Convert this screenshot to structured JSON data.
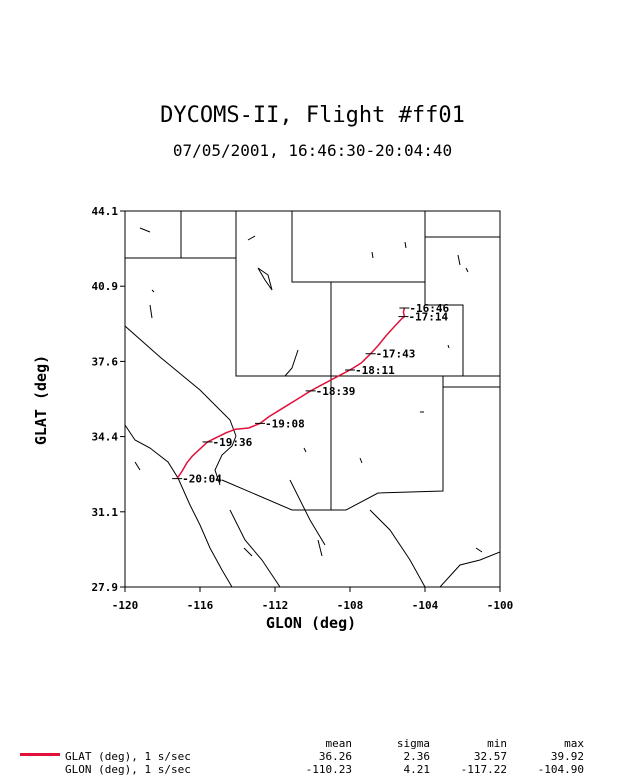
{
  "title": "DYCOMS-II, Flight #ff01",
  "subtitle": "07/05/2001, 16:46:30-20:04:40",
  "map": {
    "x_label": "GLON (deg)",
    "y_label": "GLAT (deg)",
    "x_range": [
      -120,
      -100
    ],
    "y_range": [
      27.9,
      44.1
    ],
    "x_ticks": [
      "-120",
      "-116",
      "-112",
      "-108",
      "-104",
      "-100"
    ],
    "y_ticks": [
      "44.1",
      "40.9",
      "37.6",
      "34.4",
      "31.1",
      "27.9"
    ],
    "track_color": "#e0103a",
    "track": [
      [
        -105.1,
        39.92
      ],
      [
        -105.15,
        39.75
      ],
      [
        -105.1,
        39.55
      ],
      [
        -105.25,
        39.45
      ],
      [
        -105.6,
        39.15
      ],
      [
        -106.1,
        38.7
      ],
      [
        -106.5,
        38.3
      ],
      [
        -106.9,
        37.95
      ],
      [
        -107.4,
        37.55
      ],
      [
        -108.0,
        37.25
      ],
      [
        -108.6,
        37.0
      ],
      [
        -109.3,
        36.7
      ],
      [
        -110.1,
        36.35
      ],
      [
        -110.9,
        35.95
      ],
      [
        -111.6,
        35.6
      ],
      [
        -112.3,
        35.25
      ],
      [
        -112.8,
        34.95
      ],
      [
        -113.4,
        34.75
      ],
      [
        -114.1,
        34.7
      ],
      [
        -114.6,
        34.55
      ],
      [
        -115.1,
        34.35
      ],
      [
        -115.6,
        34.15
      ],
      [
        -116.0,
        33.85
      ],
      [
        -116.4,
        33.55
      ],
      [
        -116.7,
        33.25
      ],
      [
        -116.95,
        32.9
      ],
      [
        -117.22,
        32.57
      ]
    ],
    "time_marks": [
      {
        "time": "16:46",
        "lon": -105.1,
        "lat": 39.92
      },
      {
        "time": "17:14",
        "lon": -105.15,
        "lat": 39.55
      },
      {
        "time": "17:43",
        "lon": -106.9,
        "lat": 37.95
      },
      {
        "time": "18:11",
        "lon": -108.0,
        "lat": 37.25
      },
      {
        "time": "18:39",
        "lon": -110.1,
        "lat": 36.35
      },
      {
        "time": "19:08",
        "lon": -112.8,
        "lat": 34.95
      },
      {
        "time": "19:36",
        "lon": -115.6,
        "lat": 34.15
      },
      {
        "time": "20:04",
        "lon": -117.22,
        "lat": 32.57
      }
    ]
  },
  "stats": {
    "headers": [
      "mean",
      "sigma",
      "min",
      "max"
    ],
    "rows": [
      {
        "label": "GLAT (deg), 1 s/sec",
        "values": [
          "36.26",
          "2.36",
          "32.57",
          "39.92"
        ]
      },
      {
        "label": "GLON (deg), 1 s/sec",
        "values": [
          "-110.23",
          "4.21",
          "-117.22",
          "-104.90"
        ]
      }
    ]
  }
}
